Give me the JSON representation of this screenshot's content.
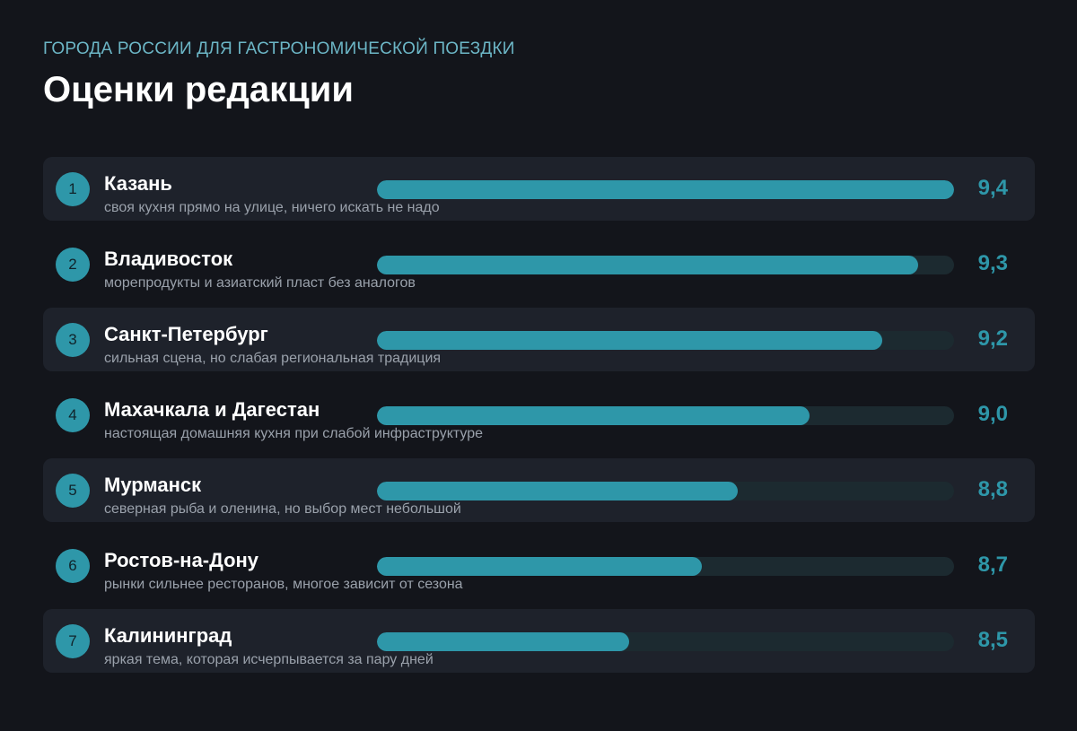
{
  "header": {
    "kicker": "ГОРОДА РОССИИ ДЛЯ ГАСТРОНОМИЧЕСКОЙ ПОЕЗДКИ",
    "title": "Оценки редакции"
  },
  "colors": {
    "background": "#13151b",
    "row_shade": "#1e222b",
    "accent": "#2e97a9",
    "track": "#1c2a30",
    "kicker": "#6cb6c6"
  },
  "chart_data": {
    "type": "bar",
    "title": "Оценки редакции",
    "subtitle": "ГОРОДА РОССИИ ДЛЯ ГАСТРОНОМИЧЕСКОЙ ПОЕЗДКИ",
    "orientation": "horizontal",
    "categories": [
      "Казань",
      "Владивосток",
      "Санкт-Петербург",
      "Махачкала и Дагестан",
      "Мурманск",
      "Ростов-на-Дону",
      "Калининград"
    ],
    "values": [
      9.4,
      9.3,
      9.2,
      9.0,
      8.8,
      8.7,
      8.5
    ],
    "xlim": [
      7.8,
      9.4
    ],
    "grid": false,
    "legend": "none",
    "rows": [
      {
        "rank": "1",
        "name": "Казань",
        "note": "своя кухня прямо на улице, ничего искать не надо",
        "score": "9,4",
        "value": 9.4
      },
      {
        "rank": "2",
        "name": "Владивосток",
        "note": "морепродукты и азиатский пласт без аналогов",
        "score": "9,3",
        "value": 9.3
      },
      {
        "rank": "3",
        "name": "Санкт-Петербург",
        "note": "сильная сцена, но слабая региональная традиция",
        "score": "9,2",
        "value": 9.2
      },
      {
        "rank": "4",
        "name": "Махачкала и Дагестан",
        "note": "настоящая домашняя кухня при слабой инфраструктуре",
        "score": "9,0",
        "value": 9.0
      },
      {
        "rank": "5",
        "name": "Мурманск",
        "note": "северная рыба и оленина, но выбор мест небольшой",
        "score": "8,8",
        "value": 8.8
      },
      {
        "rank": "6",
        "name": "Ростов-на-Дону",
        "note": "рынки сильнее ресторанов, многое зависит от сезона",
        "score": "8,7",
        "value": 8.7
      },
      {
        "rank": "7",
        "name": "Калининград",
        "note": "яркая тема, которая исчерпывается за пару дней",
        "score": "8,5",
        "value": 8.5
      }
    ]
  }
}
